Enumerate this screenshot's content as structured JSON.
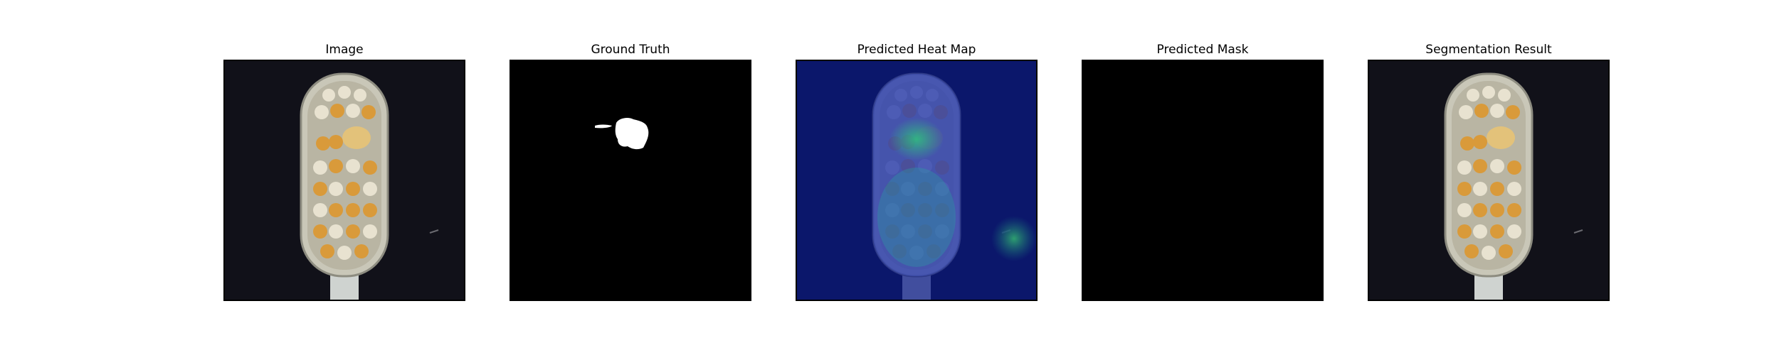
{
  "panels": [
    {
      "title": "Image",
      "content": "toothbrush-photo"
    },
    {
      "title": "Ground Truth",
      "content": "ground-truth-mask"
    },
    {
      "title": "Predicted Heat Map",
      "content": "heatmap-overlay"
    },
    {
      "title": "Predicted Mask",
      "content": "empty-mask"
    },
    {
      "title": "Segmentation Result",
      "content": "toothbrush-photo"
    }
  ],
  "colors": {
    "background_dark": "#111119",
    "mask_background": "#000000",
    "mask_foreground": "#ffffff",
    "heat_low": "#0a1a8a",
    "heat_high": "#2ec27e",
    "bristle_orange": "#d99a3a",
    "bristle_white": "#e8e2d0"
  }
}
